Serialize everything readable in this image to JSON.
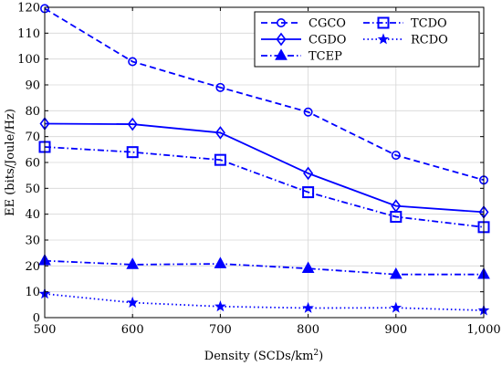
{
  "chart_data": {
    "type": "line",
    "x": [
      500,
      600,
      700,
      800,
      900,
      1000
    ],
    "x_tick_labels": [
      "500",
      "600",
      "700",
      "800",
      "900",
      "1,000"
    ],
    "xlim": [
      500,
      1000
    ],
    "ylim": [
      0,
      120
    ],
    "y_ticks": [
      0,
      10,
      20,
      30,
      40,
      50,
      60,
      70,
      80,
      90,
      100,
      110,
      120
    ],
    "xlabel": "Density (SCDs/km",
    "xlabel_sup": "2",
    "xlabel_close": ")",
    "ylabel": "EE (bits/Joule/Hz)",
    "grid": true,
    "legend_position": "top-right",
    "color": "#0000ff",
    "series": [
      {
        "name": "CGCO",
        "marker": "circle",
        "dash": "dashed",
        "values": [
          119.5,
          99,
          89,
          79.5,
          62.8,
          53.2
        ]
      },
      {
        "name": "CGDO",
        "marker": "diamond",
        "dash": "solid",
        "values": [
          75,
          74.8,
          71.5,
          55.8,
          43.2,
          40.8
        ]
      },
      {
        "name": "TCEP",
        "marker": "triangle",
        "dash": "dashdot",
        "values": [
          22,
          20.5,
          20.8,
          19,
          16.7,
          16.7
        ]
      },
      {
        "name": "TCDO",
        "marker": "square",
        "dash": "dashdot",
        "values": [
          66,
          64,
          61,
          48.5,
          39,
          35
        ]
      },
      {
        "name": "RCDO",
        "marker": "star",
        "dash": "dotted",
        "values": [
          9.2,
          5.8,
          4.3,
          3.7,
          3.8,
          2.8
        ]
      }
    ]
  }
}
